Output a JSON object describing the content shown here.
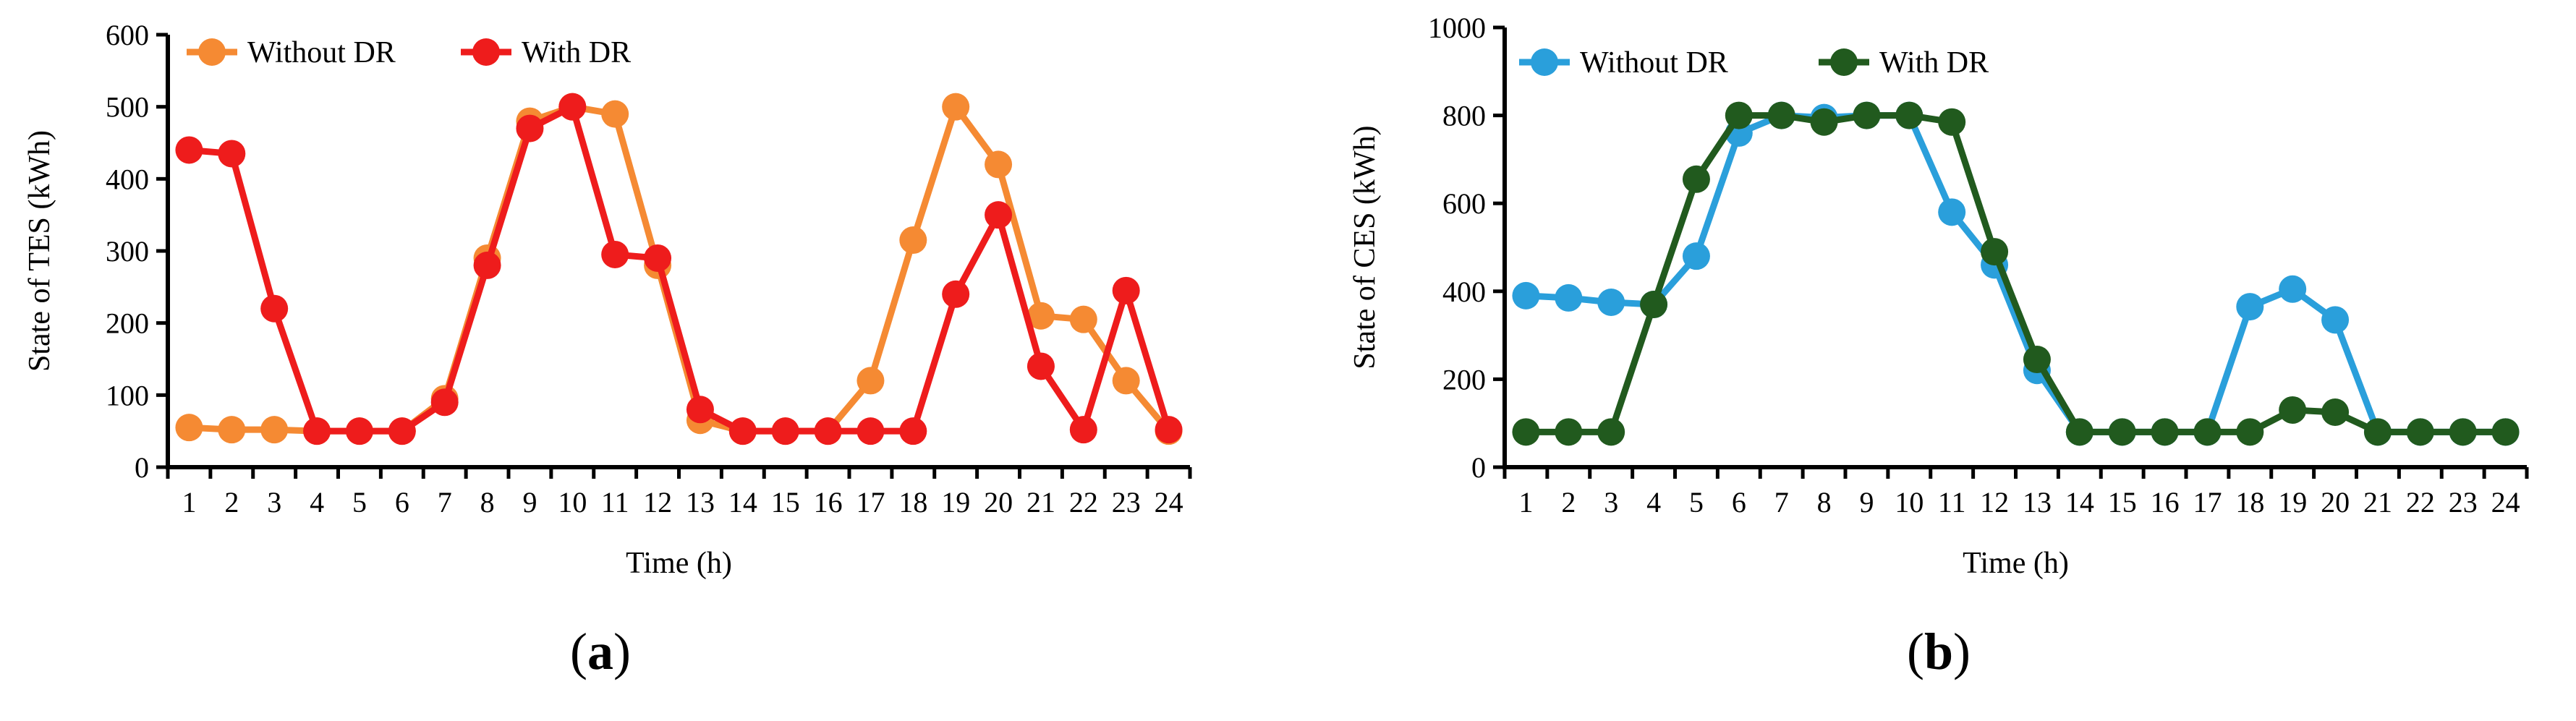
{
  "chart_data": [
    {
      "type": "line",
      "panel_label": {
        "open": "(",
        "letter": "a",
        "close": ")"
      },
      "xlabel": "Time (h)",
      "ylabel": "State of TES (kWh)",
      "x": [
        1,
        2,
        3,
        4,
        5,
        6,
        7,
        8,
        9,
        10,
        11,
        12,
        13,
        14,
        15,
        16,
        17,
        18,
        19,
        20,
        21,
        22,
        23,
        24
      ],
      "xticks": [
        "1",
        "2",
        "3",
        "4",
        "5",
        "6",
        "7",
        "8",
        "9",
        "10",
        "11",
        "12",
        "13",
        "14",
        "15",
        "16",
        "17",
        "18",
        "19",
        "20",
        "21",
        "22",
        "23",
        "24"
      ],
      "ylim": [
        0,
        600
      ],
      "yticks": [
        "0",
        "100",
        "200",
        "300",
        "400",
        "500",
        "600"
      ],
      "grid": false,
      "legend_position": "top-left",
      "series": [
        {
          "name": "Without DR",
          "color": "#F58A33",
          "values": [
            55,
            52,
            52,
            50,
            50,
            50,
            95,
            290,
            480,
            500,
            490,
            280,
            65,
            50,
            50,
            50,
            120,
            315,
            500,
            420,
            210,
            205,
            120,
            50
          ]
        },
        {
          "name": "With DR",
          "color": "#EE1C1C",
          "values": [
            440,
            435,
            220,
            50,
            50,
            50,
            90,
            280,
            470,
            500,
            295,
            290,
            80,
            50,
            50,
            50,
            50,
            50,
            240,
            350,
            140,
            52,
            245,
            52
          ]
        }
      ]
    },
    {
      "type": "line",
      "panel_label": {
        "open": "(",
        "letter": "b",
        "close": ")"
      },
      "xlabel": "Time (h)",
      "ylabel": "State of CES (kWh)",
      "x": [
        1,
        2,
        3,
        4,
        5,
        6,
        7,
        8,
        9,
        10,
        11,
        12,
        13,
        14,
        15,
        16,
        17,
        18,
        19,
        20,
        21,
        22,
        23,
        24
      ],
      "xticks": [
        "1",
        "2",
        "3",
        "4",
        "5",
        "6",
        "7",
        "8",
        "9",
        "10",
        "11",
        "12",
        "13",
        "14",
        "15",
        "16",
        "17",
        "18",
        "19",
        "20",
        "21",
        "22",
        "23",
        "24"
      ],
      "ylim": [
        0,
        1000
      ],
      "yticks": [
        "0",
        "200",
        "400",
        "600",
        "800",
        "1000"
      ],
      "grid": false,
      "legend_position": "top-left",
      "series": [
        {
          "name": "Without DR",
          "color": "#2A9FDB",
          "values": [
            390,
            385,
            375,
            370,
            480,
            760,
            800,
            795,
            800,
            800,
            580,
            460,
            220,
            80,
            80,
            80,
            80,
            365,
            405,
            335,
            80,
            80,
            80,
            80
          ]
        },
        {
          "name": "With DR",
          "color": "#215A1E",
          "values": [
            80,
            80,
            80,
            370,
            655,
            800,
            800,
            785,
            800,
            800,
            785,
            490,
            245,
            80,
            80,
            80,
            80,
            80,
            130,
            125,
            80,
            80,
            80,
            80
          ]
        }
      ]
    }
  ]
}
